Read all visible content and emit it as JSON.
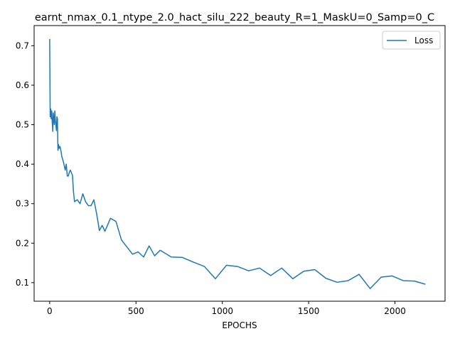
{
  "chart_data": {
    "type": "line",
    "title": "earnt_nmax_0.1_ntype_2.0_hact_silu_222_beauty_R=1_MaskU=0_Samp=0_C",
    "xlabel": "EPOCHS",
    "ylabel": "",
    "xlim": [
      -90,
      2290
    ],
    "ylim": [
      0.053,
      0.751
    ],
    "xticks": [
      0,
      500,
      1000,
      1500,
      2000
    ],
    "yticks": [
      0.1,
      0.2,
      0.3,
      0.4,
      0.5,
      0.6,
      0.7
    ],
    "xtick_labels": [
      "0",
      "500",
      "1000",
      "1500",
      "2000"
    ],
    "ytick_labels": [
      "0.1",
      "0.2",
      "0.3",
      "0.4",
      "0.5",
      "0.6",
      "0.7"
    ],
    "grid": false,
    "legend": "top-right",
    "series": [
      {
        "name": "Loss",
        "color": "#1f77b4",
        "x": [
          0,
          3,
          6,
          9,
          12,
          15,
          18,
          21,
          24,
          27,
          30,
          33,
          36,
          39,
          42,
          45,
          48,
          51,
          55,
          60,
          65,
          70,
          80,
          90,
          96,
          102,
          108,
          114,
          120,
          126,
          132,
          138,
          144,
          160,
          176,
          192,
          208,
          224,
          240,
          256,
          272,
          288,
          304,
          320,
          352,
          384,
          416,
          448,
          480,
          512,
          544,
          576,
          608,
          640,
          704,
          768,
          832,
          896,
          960,
          1024,
          1088,
          1152,
          1216,
          1280,
          1344,
          1408,
          1472,
          1536,
          1600,
          1664,
          1728,
          1792,
          1856,
          1920,
          1984,
          2048,
          2112,
          2176
        ],
        "values": [
          0.717,
          0.52,
          0.54,
          0.515,
          0.535,
          0.505,
          0.483,
          0.53,
          0.515,
          0.5,
          0.535,
          0.51,
          0.5,
          0.485,
          0.52,
          0.515,
          0.435,
          0.45,
          0.44,
          0.445,
          0.435,
          0.42,
          0.405,
          0.385,
          0.4,
          0.37,
          0.37,
          0.38,
          0.385,
          0.378,
          0.372,
          0.33,
          0.305,
          0.31,
          0.3,
          0.325,
          0.305,
          0.295,
          0.295,
          0.31,
          0.275,
          0.232,
          0.245,
          0.23,
          0.263,
          0.255,
          0.208,
          0.19,
          0.172,
          0.178,
          0.165,
          0.193,
          0.168,
          0.182,
          0.165,
          0.164,
          0.152,
          0.141,
          0.11,
          0.144,
          0.141,
          0.13,
          0.137,
          0.118,
          0.137,
          0.11,
          0.129,
          0.133,
          0.111,
          0.101,
          0.105,
          0.121,
          0.085,
          0.114,
          0.117,
          0.105,
          0.104,
          0.096
        ]
      }
    ]
  }
}
